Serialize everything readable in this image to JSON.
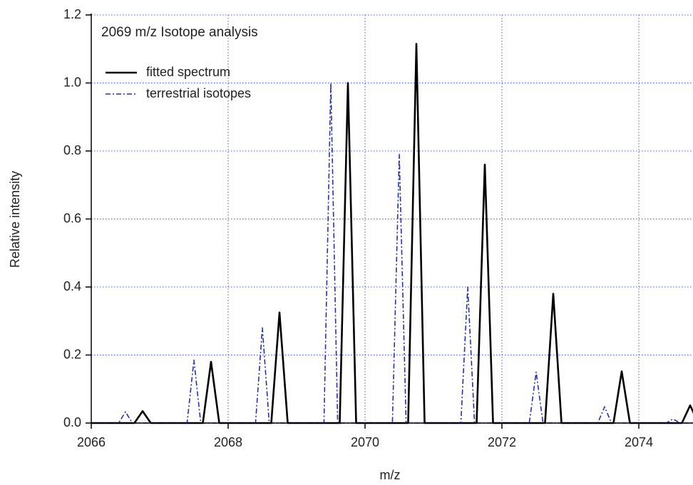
{
  "chart_data": {
    "type": "line",
    "title": "2069 m/z  Isotope analysis",
    "x_label": "m/z",
    "y_label": "Relative intensity",
    "xlim": [
      2066,
      2074.8
    ],
    "ylim": [
      0,
      1.2
    ],
    "xticks": [
      2066,
      2068,
      2070,
      2072,
      2074
    ],
    "yticks": [
      {
        "value": 0,
        "label": "0.0"
      },
      0.2,
      0.4,
      0.6,
      0.8,
      {
        "value": 1,
        "label": "1.0"
      },
      1.2
    ],
    "grid": true,
    "legend": "upper-left",
    "series": [
      {
        "name": "fitted spectrum",
        "color": "#000000",
        "style": "solid",
        "x": [
          2066,
          2066.63,
          2066.75,
          2066.87,
          2067.63,
          2067.75,
          2067.87,
          2068.63,
          2068.75,
          2068.87,
          2069.63,
          2069.75,
          2069.87,
          2070.63,
          2070.75,
          2070.87,
          2071.63,
          2071.75,
          2071.87,
          2072.63,
          2072.75,
          2072.87,
          2073.63,
          2073.75,
          2073.87,
          2074.63,
          2074.75,
          2074.87
        ],
        "values": [
          0,
          0,
          0.035,
          0,
          0,
          0.18,
          0,
          0,
          0.325,
          0,
          0,
          1.0,
          0,
          0,
          1.115,
          0,
          0,
          0.76,
          0,
          0,
          0.38,
          0,
          0,
          0.152,
          0,
          0,
          0.052,
          0
        ]
      },
      {
        "name": "terrestrial isotopes",
        "color": "#2630a8",
        "style": "dashdot",
        "x": [
          2066,
          2066.4,
          2066.5,
          2066.6,
          2067.4,
          2067.5,
          2067.6,
          2068.4,
          2068.5,
          2068.6,
          2069.4,
          2069.5,
          2069.6,
          2070.4,
          2070.5,
          2070.6,
          2071.4,
          2071.5,
          2071.6,
          2072.4,
          2072.5,
          2072.6,
          2073.4,
          2073.5,
          2073.6,
          2074.4,
          2074.5,
          2074.6,
          2074.8
        ],
        "values": [
          0,
          0,
          0.033,
          0,
          0,
          0.185,
          0,
          0,
          0.28,
          0,
          0,
          1.0,
          0,
          0,
          0.79,
          0,
          0,
          0.4,
          0,
          0,
          0.15,
          0,
          0,
          0.048,
          0,
          0,
          0.012,
          0,
          0
        ]
      }
    ]
  }
}
